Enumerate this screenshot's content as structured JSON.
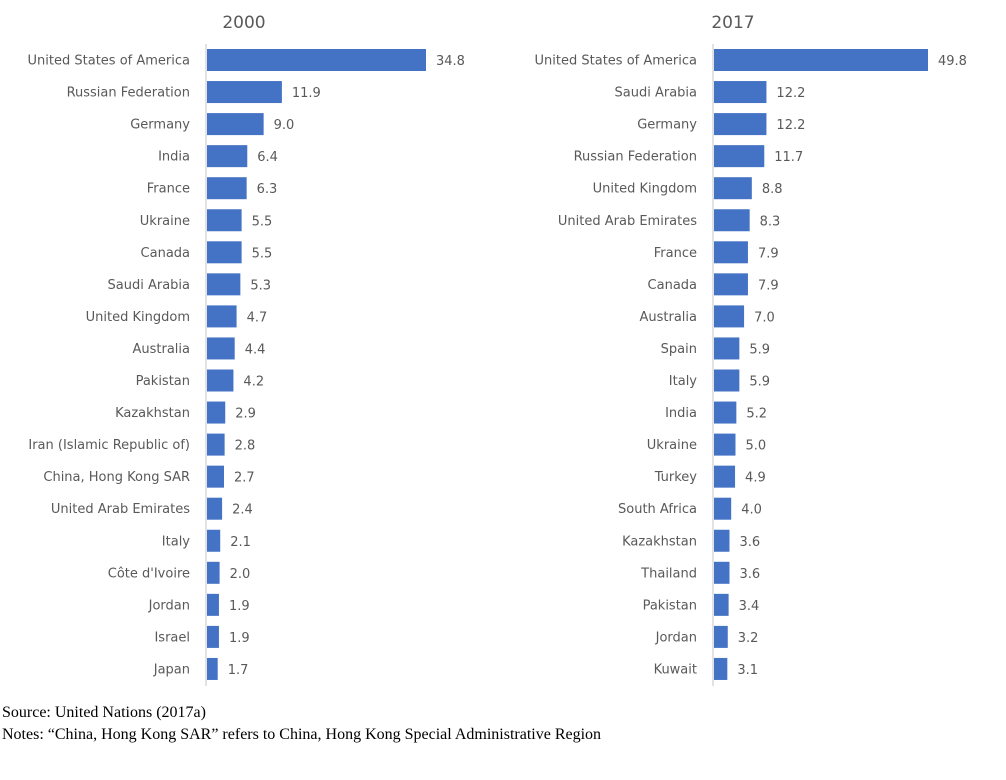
{
  "chart_data": [
    {
      "type": "bar",
      "orientation": "horizontal",
      "title": "2000",
      "categories": [
        "United States of America",
        "Russian Federation",
        "Germany",
        "India",
        "France",
        "Ukraine",
        "Canada",
        "Saudi Arabia",
        "United Kingdom",
        "Australia",
        "Pakistan",
        "Kazakhstan",
        "Iran (Islamic Republic of)",
        "China, Hong Kong SAR",
        "United Arab Emirates",
        "Italy",
        "Côte d'Ivoire",
        "Jordan",
        "Israel",
        "Japan"
      ],
      "values": [
        34.8,
        11.9,
        9.0,
        6.4,
        6.3,
        5.5,
        5.5,
        5.3,
        4.7,
        4.4,
        4.2,
        2.9,
        2.8,
        2.7,
        2.4,
        2.1,
        2.0,
        1.9,
        1.9,
        1.7
      ],
      "value_labels": [
        "34.8",
        "11.9",
        "9.0",
        "6.4",
        "6.3",
        "5.5",
        "5.5",
        "5.3",
        "4.7",
        "4.4",
        "4.2",
        "2.9",
        "2.8",
        "2.7",
        "2.4",
        "2.1",
        "2.0",
        "1.9",
        "1.9",
        "1.7"
      ],
      "color": "#4472C4",
      "grid": false
    },
    {
      "type": "bar",
      "orientation": "horizontal",
      "title": "2017",
      "categories": [
        "United States of America",
        "Saudi Arabia",
        "Germany",
        "Russian Federation",
        "United Kingdom",
        "United Arab Emirates",
        "France",
        "Canada",
        "Australia",
        "Spain",
        "Italy",
        "India",
        "Ukraine",
        "Turkey",
        "South Africa",
        "Kazakhstan",
        "Thailand",
        "Pakistan",
        "Jordan",
        "Kuwait"
      ],
      "values": [
        49.8,
        12.2,
        12.2,
        11.7,
        8.8,
        8.3,
        7.9,
        7.9,
        7.0,
        5.9,
        5.9,
        5.2,
        5.0,
        4.9,
        4.0,
        3.6,
        3.6,
        3.4,
        3.2,
        3.1
      ],
      "value_labels": [
        "49.8",
        "12.2",
        "12.2",
        "11.7",
        "8.8",
        "8.3",
        "7.9",
        "7.9",
        "7.0",
        "5.9",
        "5.9",
        "5.2",
        "5.0",
        "4.9",
        "4.0",
        "3.6",
        "3.6",
        "3.4",
        "3.2",
        "3.1"
      ],
      "color": "#4472C4",
      "grid": false
    }
  ],
  "footer": {
    "source": "Source: United Nations (2017a)",
    "notes": "Notes: “China, Hong Kong SAR” refers to China, Hong Kong Special Administrative Region"
  }
}
